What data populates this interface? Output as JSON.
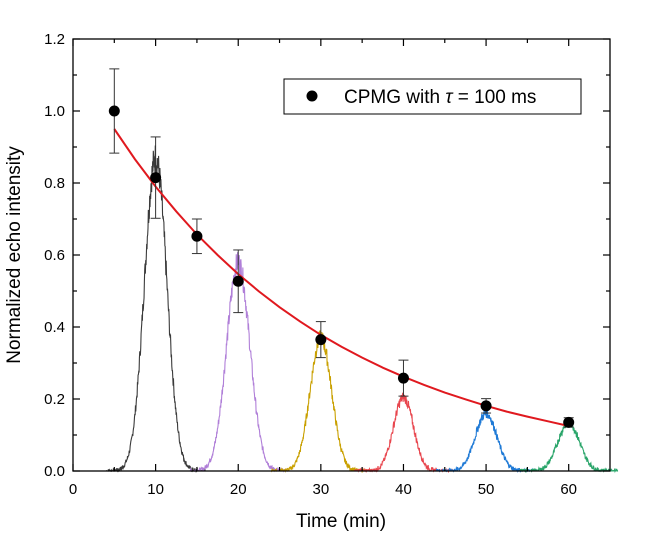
{
  "chart_data": {
    "type": "scatter",
    "xlabel": "Time (min)",
    "ylabel": "Normalized echo intensity",
    "xlim": [
      0,
      65
    ],
    "ylim": [
      0,
      1.2
    ],
    "xticks": [
      0,
      10,
      20,
      30,
      40,
      50,
      60
    ],
    "yticks": [
      0.0,
      0.2,
      0.4,
      0.6,
      0.8,
      1.0,
      1.2
    ],
    "xtick_labels": [
      "0",
      "10",
      "20",
      "30",
      "40",
      "50",
      "60"
    ],
    "ytick_labels": [
      "0.0",
      "0.2",
      "0.4",
      "0.6",
      "0.8",
      "1.0",
      "1.2"
    ],
    "grid": false,
    "legend_placement": "top-right",
    "legend": {
      "prefix": "CPMG with ",
      "symbol": "τ",
      "suffix": " = 100 ms"
    },
    "series": [
      {
        "name": "CPMG with τ = 100 ms",
        "kind": "points-with-errorbars",
        "color": "#000000",
        "x": [
          5,
          10,
          15,
          20,
          30,
          40,
          50,
          60
        ],
        "y": [
          1.0,
          0.815,
          0.652,
          0.527,
          0.365,
          0.258,
          0.181,
          0.135
        ],
        "err": [
          0.117,
          0.113,
          0.048,
          0.087,
          0.05,
          0.05,
          0.02,
          0.013
        ]
      },
      {
        "kind": "fit",
        "color": "#e0191f",
        "x": [
          5,
          7.5,
          10,
          12.5,
          15,
          17.5,
          20,
          22.5,
          25,
          27.5,
          30,
          32.5,
          35,
          37.5,
          40,
          42.5,
          45,
          47.5,
          50,
          52.5,
          55,
          57.5,
          60
        ],
        "y": [
          0.95,
          0.866,
          0.79,
          0.721,
          0.657,
          0.6,
          0.547,
          0.499,
          0.455,
          0.415,
          0.378,
          0.345,
          0.315,
          0.287,
          0.262,
          0.239,
          0.218,
          0.199,
          0.181,
          0.165,
          0.151,
          0.138,
          0.125
        ]
      }
    ],
    "peaks": [
      {
        "center": 10,
        "width": 1.35,
        "height": 0.87,
        "color": "#3a3a3a"
      },
      {
        "center": 20,
        "width": 1.4,
        "height": 0.58,
        "color": "#b07fd8"
      },
      {
        "center": 30,
        "width": 1.3,
        "height": 0.37,
        "color": "#c9a000"
      },
      {
        "center": 40,
        "width": 1.2,
        "height": 0.205,
        "color": "#e8454d"
      },
      {
        "center": 50,
        "width": 1.3,
        "height": 0.16,
        "color": "#1f7ad6"
      },
      {
        "center": 60,
        "width": 1.3,
        "height": 0.135,
        "color": "#2aa56a"
      }
    ]
  }
}
